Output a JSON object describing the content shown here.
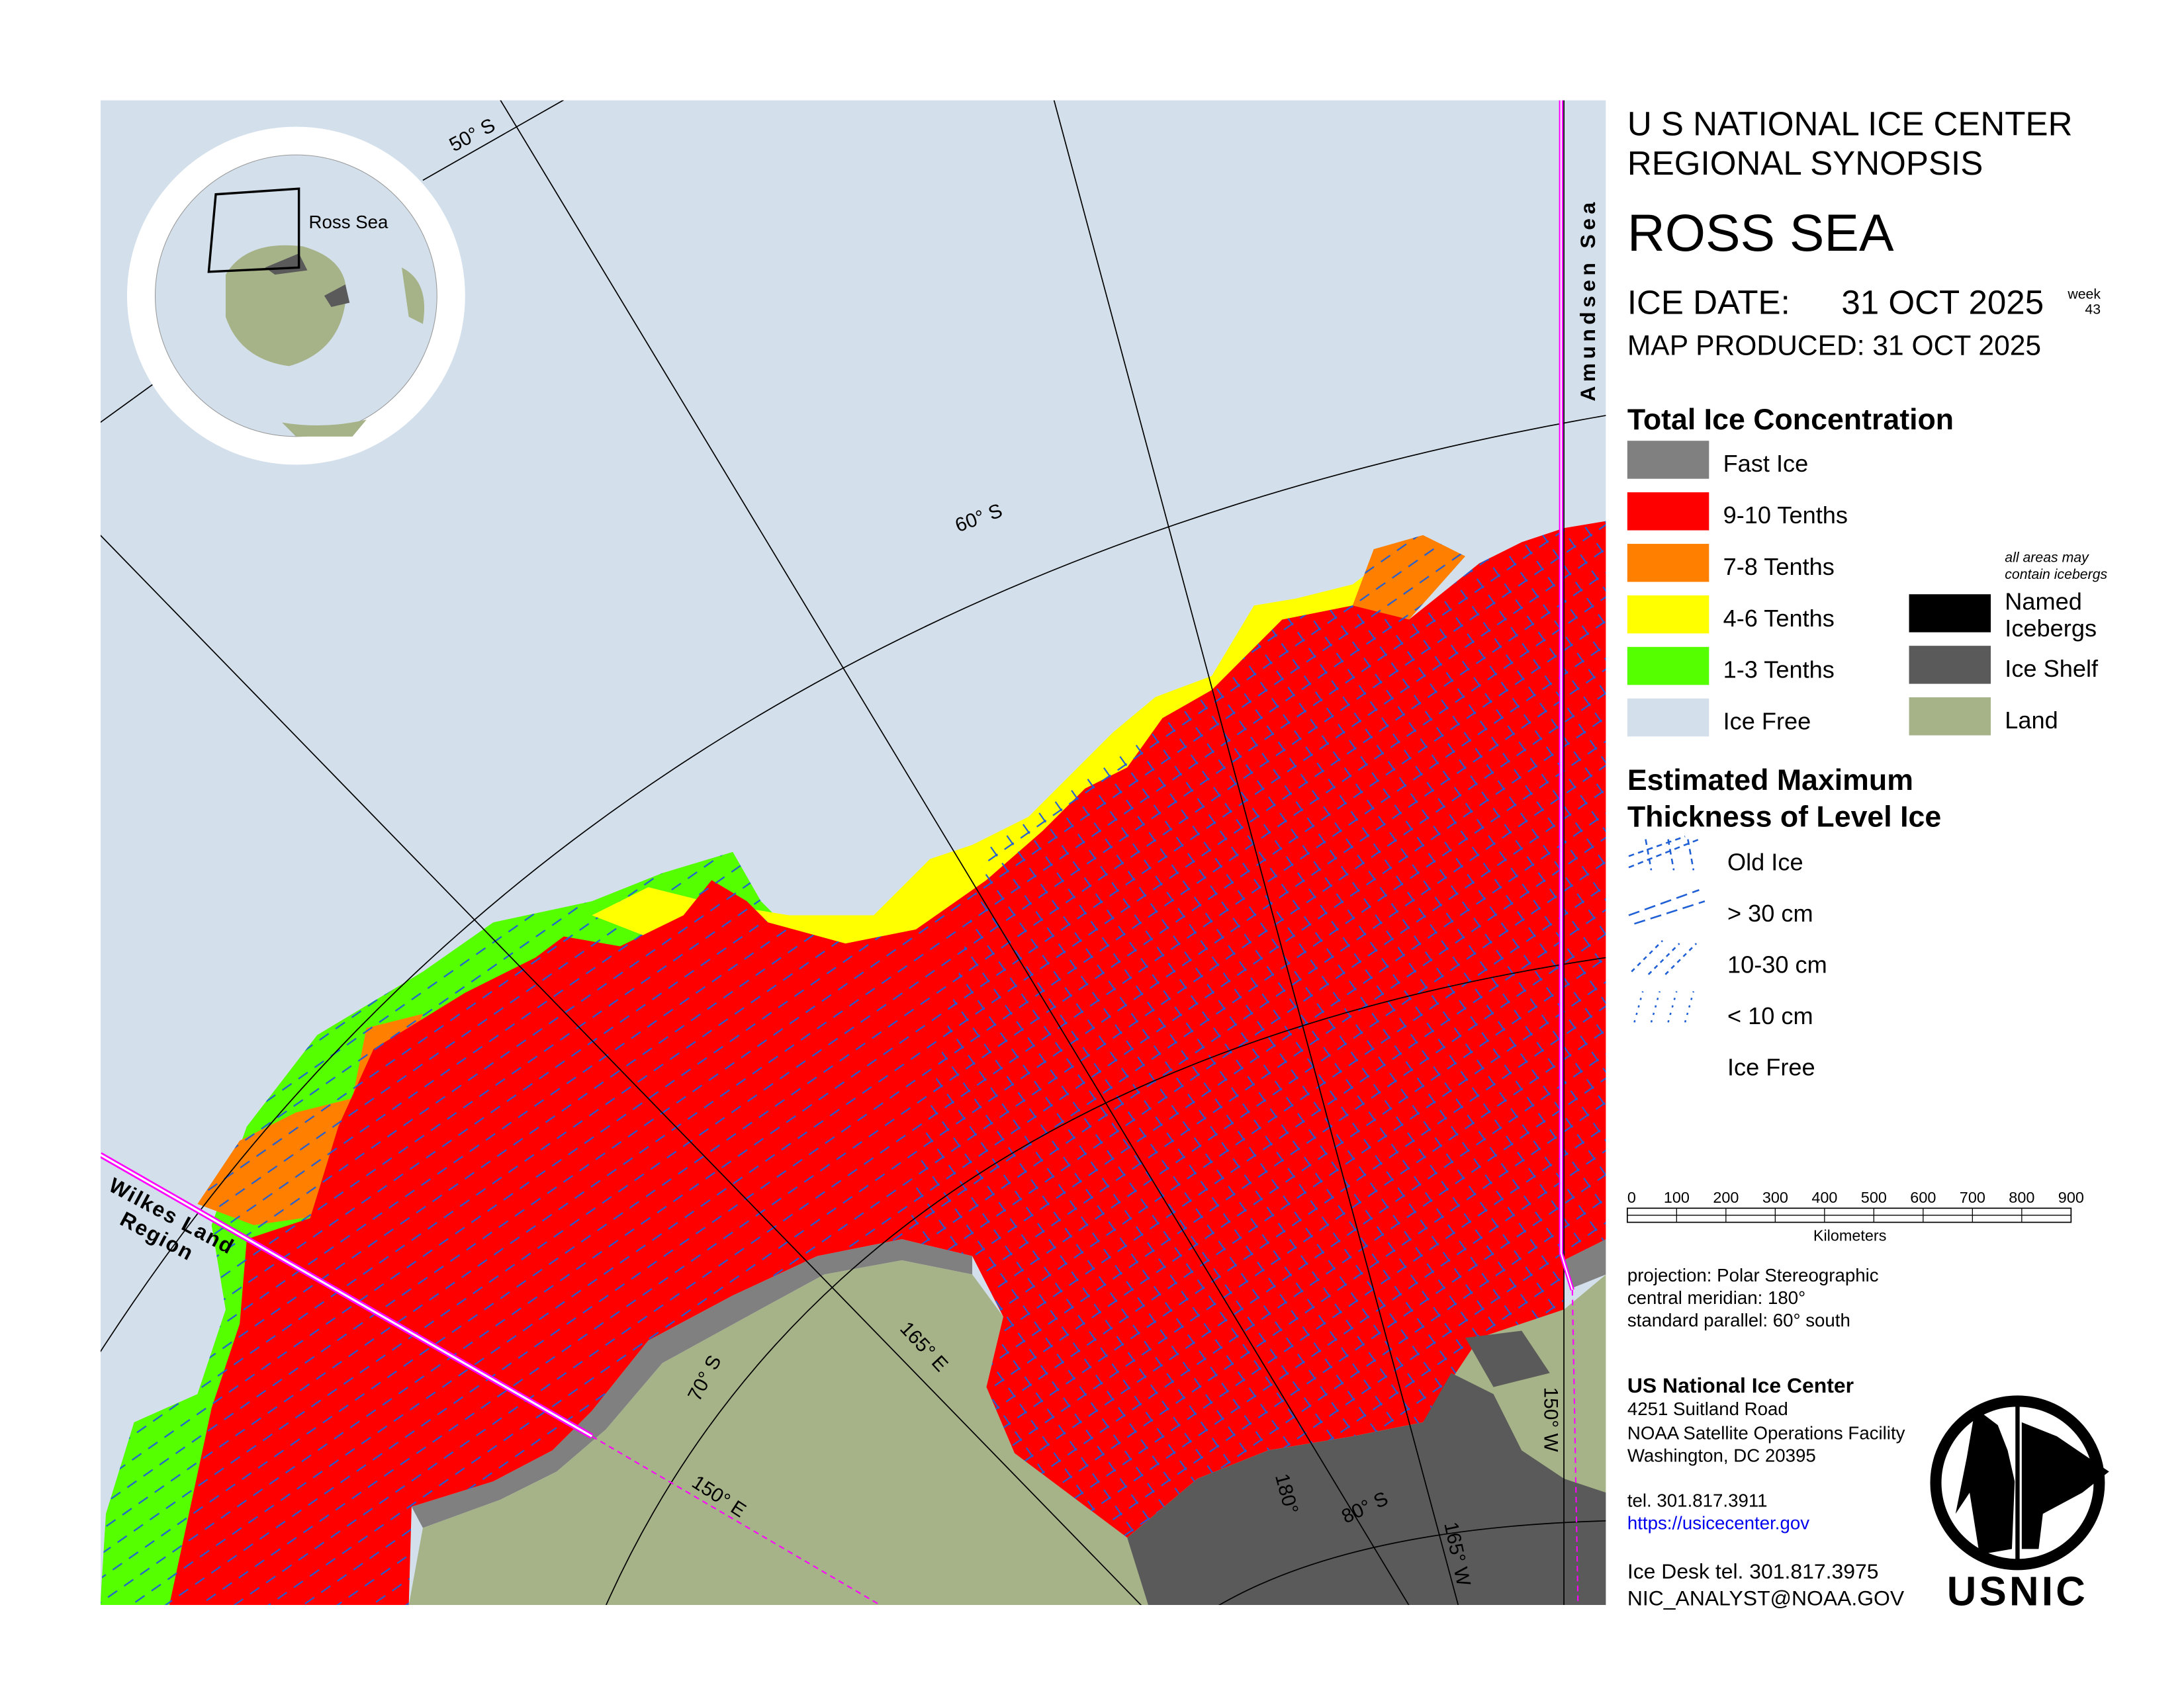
{
  "header": {
    "org_line1": "U S NATIONAL ICE CENTER",
    "org_line2": "REGIONAL SYNOPSIS",
    "region": "ROSS SEA",
    "ice_date_label": "ICE DATE:",
    "ice_date": "31 OCT 2025",
    "week_label": "week",
    "week_number": "43",
    "map_produced": "MAP PRODUCED:  31 OCT 2025"
  },
  "concentration_legend": {
    "title": "Total Ice Concentration",
    "items": [
      {
        "label": "Fast Ice",
        "color": "#808080"
      },
      {
        "label": "9-10 Tenths",
        "color": "#ff0000"
      },
      {
        "label": "7-8 Tenths",
        "color": "#ff7f00"
      },
      {
        "label": "4-6 Tenths",
        "color": "#ffff00"
      },
      {
        "label": "1-3 Tenths",
        "color": "#55ff00"
      },
      {
        "label": "Ice Free",
        "color": "#d3e0ec"
      }
    ],
    "iceberg_note_line1": "all areas may",
    "iceberg_note_line2": "contain icebergs",
    "other_items": [
      {
        "label_line1": "Named",
        "label_line2": "Icebergs",
        "color": "#000000"
      },
      {
        "label_line1": "Ice Shelf",
        "label_line2": "",
        "color": "#5a5a5a"
      },
      {
        "label_line1": "Land",
        "label_line2": "",
        "color": "#a6b287"
      }
    ]
  },
  "thickness_legend": {
    "title_line1": "Estimated Maximum",
    "title_line2": "Thickness of Level Ice",
    "items": [
      {
        "label": "Old Ice",
        "icon": "cross-hatch-icon"
      },
      {
        "label": "> 30 cm",
        "icon": "long-dash-hatch-icon"
      },
      {
        "label": "10-30 cm",
        "icon": "short-dash-hatch-icon"
      },
      {
        "label": "< 10 cm",
        "icon": "dot-hatch-icon"
      },
      {
        "label": "Ice Free",
        "icon": "none"
      }
    ],
    "hatch_color": "#1f5fd6"
  },
  "scale_bar": {
    "ticks": [
      "0",
      "100",
      "200",
      "300",
      "400",
      "500",
      "600",
      "700",
      "800",
      "900"
    ],
    "unit": "Kilometers"
  },
  "projection": {
    "line1": "projection: Polar Stereographic",
    "line2": "central meridian: 180°",
    "line3": "standard parallel:  60° south"
  },
  "contact": {
    "name": "US National Ice Center",
    "address1": "4251 Suitland Road",
    "address2": "NOAA Satellite Operations Facility",
    "address3": "Washington, DC  20395",
    "tel": "tel. 301.817.3911",
    "url": "https://usicecenter.gov",
    "ice_desk": "Ice Desk tel. 301.817.3975",
    "email": "NIC_ANALYST@NOAA.GOV"
  },
  "logo": {
    "text": "USNIC"
  },
  "map": {
    "inset_label": "Ross Sea",
    "parallels": [
      "50° S",
      "60° S",
      "70° S",
      "80° S"
    ],
    "meridians": [
      "165° E",
      "150° E",
      "180°",
      "165° W",
      "150° W"
    ],
    "region_labels": {
      "amundsen": "Amundsen Sea",
      "wilkes_line1": "Wilkes Land",
      "wilkes_line2": "Region"
    },
    "colors": {
      "ice_free": "#d3e0ec",
      "land": "#a6b287",
      "ice_shelf": "#5a5a5a",
      "fast_ice": "#808080",
      "boundary": "#ff00ff"
    }
  }
}
